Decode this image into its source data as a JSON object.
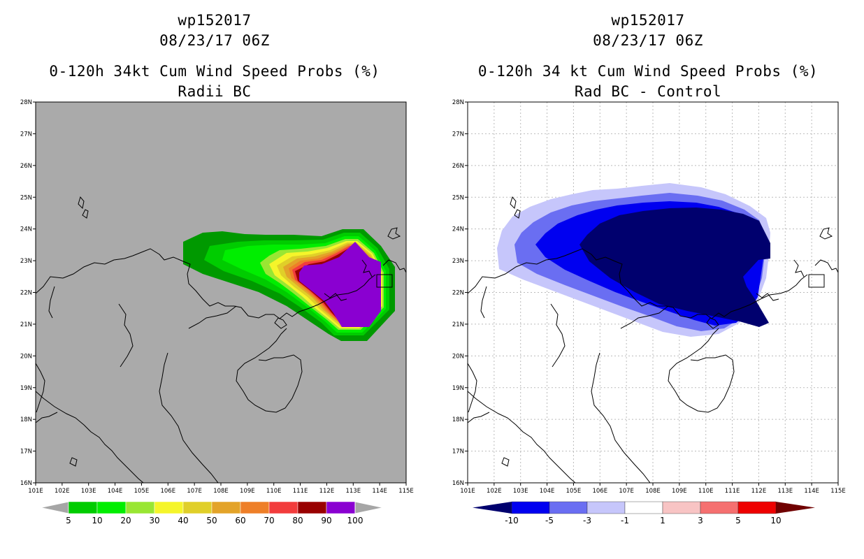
{
  "left": {
    "title1": "wp152017",
    "title2": "08/23/17 06Z",
    "title3": "0-120h 34kt Cum Wind Speed Probs (%)",
    "title4": "Radii BC",
    "legend": {
      "labels": [
        "5",
        "10",
        "20",
        "30",
        "40",
        "50",
        "60",
        "70",
        "80",
        "90",
        "100"
      ],
      "colors": [
        "#009900",
        "#00cc00",
        "#00ee00",
        "#99e633",
        "#f5f52a",
        "#e0cf29",
        "#e3a329",
        "#ee7f28",
        "#f23c3c",
        "#990000",
        "#8a00d1"
      ]
    }
  },
  "right": {
    "title1": "wp152017",
    "title2": "08/23/17 06Z",
    "title3": "0-120h 34 kt Cum Wind Speed Probs (%)",
    "title4": "Rad BC - Control",
    "legend": {
      "labels": [
        "-10",
        "-5",
        "-3",
        "-1",
        "1",
        "3",
        "5",
        "10"
      ],
      "colors": [
        "#00006e",
        "#0000f0",
        "#6a6ef2",
        "#c6c6fb",
        "#ffffff",
        "#f8c4c4",
        "#f57070",
        "#ee0000",
        "#700000"
      ]
    }
  },
  "axes": {
    "lon_labels": [
      "101E",
      "102E",
      "103E",
      "104E",
      "105E",
      "106E",
      "107E",
      "108E",
      "109E",
      "110E",
      "111E",
      "112E",
      "113E",
      "114E",
      "115E"
    ],
    "lat_labels": [
      "16N",
      "17N",
      "18N",
      "19N",
      "20N",
      "21N",
      "22N",
      "23N",
      "24N",
      "25N",
      "26N",
      "27N",
      "28N"
    ]
  }
}
